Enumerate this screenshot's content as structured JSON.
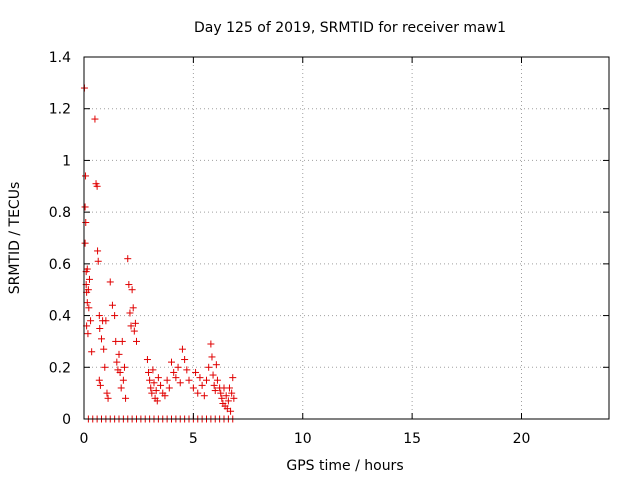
{
  "chart_data": {
    "type": "scatter",
    "title": "Day 125 of 2019, SRMTID for receiver maw1",
    "xlabel": "GPS time / hours",
    "ylabel": "SRMTID / TECUs",
    "xlim": [
      0,
      24
    ],
    "ylim": [
      0,
      1.4
    ],
    "xticks": [
      0,
      5,
      10,
      15,
      20
    ],
    "yticks": [
      0,
      0.2,
      0.4,
      0.6,
      0.8,
      1,
      1.2,
      1.4
    ],
    "xtick_labels": [
      "0",
      "5",
      "10",
      "15",
      "20"
    ],
    "ytick_labels": [
      "0",
      "0.2",
      "0.4",
      "0.6",
      "0.8",
      "1",
      "1.2",
      "1.4"
    ],
    "grid": true,
    "marker": "+",
    "color": "#e00000",
    "series": [
      {
        "name": "maw1",
        "x": [
          0.02,
          0.05,
          0.05,
          0.07,
          0.08,
          0.1,
          0.1,
          0.12,
          0.12,
          0.15,
          0.15,
          0.18,
          0.2,
          0.22,
          0.25,
          0.3,
          0.35,
          0.5,
          0.55,
          0.6,
          0.62,
          0.65,
          0.7,
          0.7,
          0.72,
          0.75,
          0.8,
          0.85,
          0.9,
          0.95,
          1.0,
          1.05,
          1.1,
          1.2,
          1.3,
          1.4,
          1.45,
          1.5,
          1.55,
          1.6,
          1.65,
          1.7,
          1.75,
          1.8,
          1.85,
          1.9,
          2.0,
          2.05,
          2.1,
          2.15,
          2.2,
          2.25,
          2.3,
          2.35,
          2.4,
          2.9,
          2.95,
          3.0,
          3.05,
          3.1,
          3.15,
          3.2,
          3.25,
          3.3,
          3.35,
          3.4,
          3.5,
          3.6,
          3.7,
          3.8,
          3.9,
          4.0,
          4.1,
          4.2,
          4.3,
          4.4,
          4.5,
          4.6,
          4.7,
          4.8,
          5.0,
          5.1,
          5.2,
          5.3,
          5.4,
          5.5,
          5.6,
          5.7,
          5.8,
          5.85,
          5.9,
          5.95,
          6.0,
          6.05,
          6.1,
          6.2,
          6.25,
          6.3,
          6.35,
          6.4,
          6.45,
          6.5,
          6.55,
          6.6,
          6.65,
          6.7,
          6.75,
          6.8,
          6.85,
          0.2,
          0.4,
          0.6,
          0.8,
          1.0,
          1.2,
          1.4,
          1.6,
          1.8,
          2.0,
          2.2,
          2.4,
          2.6,
          2.8,
          3.0,
          3.2,
          3.4,
          3.6,
          3.8,
          4.0,
          4.2,
          4.4,
          4.6,
          4.8,
          5.0,
          5.2,
          5.4,
          5.6,
          5.8,
          6.0,
          6.2,
          6.4,
          6.6,
          6.8
        ],
        "y": [
          1.28,
          0.82,
          0.68,
          0.94,
          0.76,
          0.57,
          0.52,
          0.36,
          0.49,
          0.58,
          0.45,
          0.33,
          0.5,
          0.43,
          0.54,
          0.38,
          0.26,
          1.16,
          0.91,
          0.9,
          0.65,
          0.61,
          0.4,
          0.15,
          0.35,
          0.13,
          0.31,
          0.38,
          0.27,
          0.2,
          0.38,
          0.1,
          0.08,
          0.53,
          0.44,
          0.4,
          0.3,
          0.22,
          0.19,
          0.25,
          0.18,
          0.12,
          0.3,
          0.15,
          0.2,
          0.08,
          0.62,
          0.52,
          0.41,
          0.36,
          0.5,
          0.43,
          0.34,
          0.37,
          0.3,
          0.23,
          0.18,
          0.15,
          0.12,
          0.1,
          0.19,
          0.14,
          0.08,
          0.11,
          0.07,
          0.16,
          0.13,
          0.1,
          0.09,
          0.15,
          0.12,
          0.22,
          0.18,
          0.16,
          0.2,
          0.14,
          0.27,
          0.23,
          0.19,
          0.15,
          0.12,
          0.18,
          0.1,
          0.16,
          0.13,
          0.09,
          0.15,
          0.2,
          0.29,
          0.24,
          0.17,
          0.13,
          0.11,
          0.21,
          0.15,
          0.12,
          0.1,
          0.08,
          0.06,
          0.12,
          0.05,
          0.09,
          0.04,
          0.07,
          0.12,
          0.03,
          0.1,
          0.16,
          0.08,
          0,
          0,
          0,
          0,
          0,
          0,
          0,
          0,
          0,
          0,
          0,
          0,
          0,
          0,
          0,
          0,
          0,
          0,
          0,
          0,
          0,
          0,
          0,
          0,
          0,
          0,
          0,
          0,
          0,
          0,
          0,
          0,
          0,
          0
        ]
      }
    ]
  }
}
